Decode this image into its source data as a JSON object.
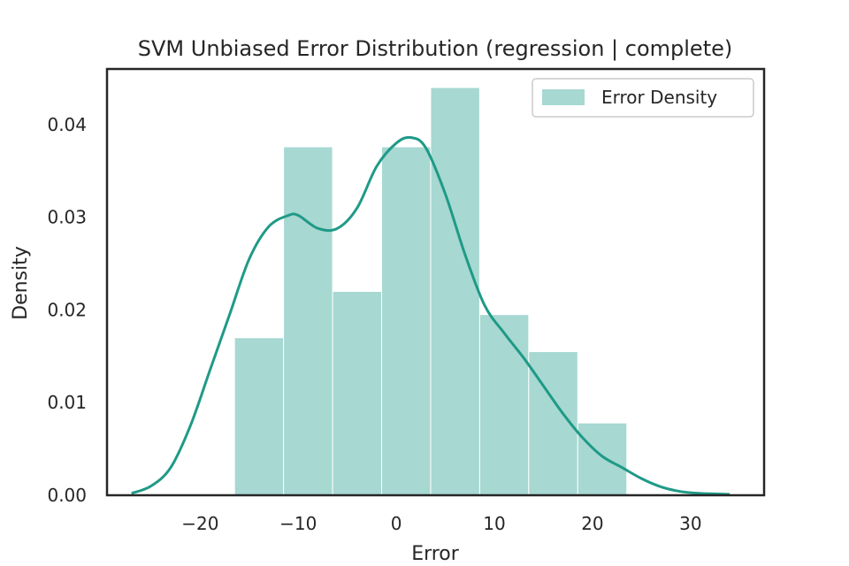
{
  "chart_data": {
    "type": "bar",
    "title": "SVM Unbiased Error Distribution (regression | complete)",
    "xlabel": "Error",
    "ylabel": "Density",
    "xlim": [
      -29.5,
      37.5
    ],
    "ylim": [
      0,
      0.046
    ],
    "xticks": [
      -20,
      -10,
      0,
      10,
      20,
      30
    ],
    "xtick_labels": [
      "−20",
      "−10",
      "0",
      "10",
      "20",
      "30"
    ],
    "yticks": [
      0,
      0.01,
      0.02,
      0.03,
      0.04
    ],
    "ytick_labels": [
      "0.00",
      "0.01",
      "0.02",
      "0.03",
      "0.04"
    ],
    "grid": false,
    "legend": {
      "position": "top-right",
      "label": "Error Density"
    },
    "histogram": {
      "bin_edges": [
        -16.5,
        -11.5,
        -6.5,
        -1.5,
        3.5,
        8.5,
        13.5,
        18.5,
        23.5
      ],
      "densities": [
        0.017,
        0.0376,
        0.022,
        0.0376,
        0.044,
        0.0195,
        0.0155,
        0.0078
      ]
    },
    "kde": {
      "x": [
        -27,
        -25,
        -23,
        -21,
        -19,
        -17,
        -15,
        -13,
        -11,
        -10,
        -8,
        -6,
        -4,
        -2,
        0,
        1.5,
        3,
        5,
        7,
        9,
        11,
        13,
        15,
        17,
        19,
        21,
        23,
        25,
        27,
        29,
        31,
        34
      ],
      "y": [
        0.0002,
        0.001,
        0.003,
        0.0075,
        0.0135,
        0.0195,
        0.0255,
        0.029,
        0.0302,
        0.0302,
        0.0288,
        0.0288,
        0.031,
        0.0355,
        0.038,
        0.0386,
        0.0375,
        0.0325,
        0.026,
        0.0205,
        0.0175,
        0.0148,
        0.0118,
        0.0088,
        0.0062,
        0.0042,
        0.003,
        0.0018,
        0.0009,
        0.0004,
        0.0002,
        0.0001
      ]
    },
    "colors": {
      "bar": "#a7d8d2",
      "line": "#1f9a87",
      "axis": "#262626"
    }
  }
}
